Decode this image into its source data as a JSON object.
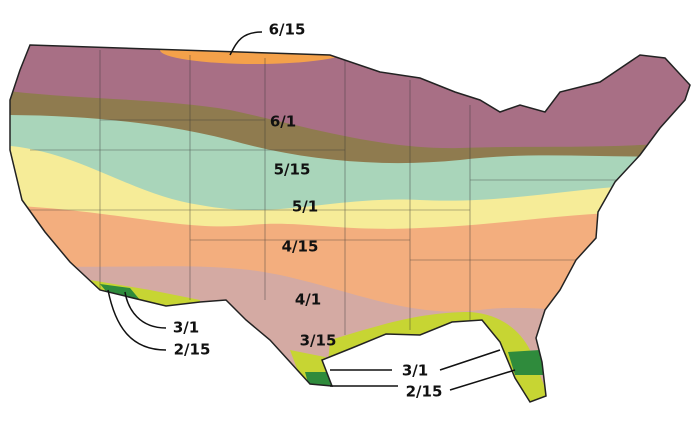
{
  "zones": [
    {
      "label": "6/15"
    },
    {
      "label": "6/1"
    },
    {
      "label": "5/15"
    },
    {
      "label": "5/1"
    },
    {
      "label": "4/15"
    },
    {
      "label": "4/1"
    },
    {
      "label": "3/15"
    }
  ],
  "callouts_west": [
    {
      "label": "3/1"
    },
    {
      "label": "2/15"
    }
  ],
  "callouts_east": [
    {
      "label": "3/1"
    },
    {
      "label": "2/15"
    }
  ]
}
